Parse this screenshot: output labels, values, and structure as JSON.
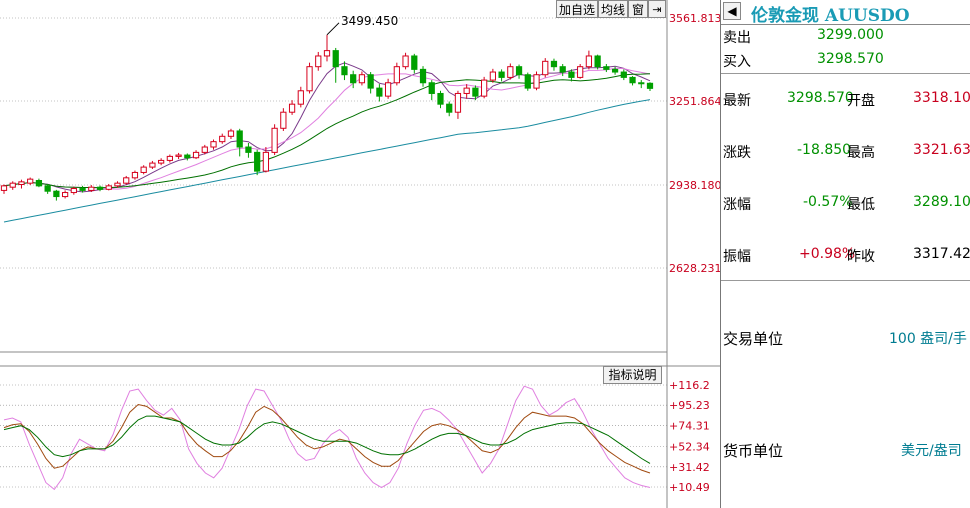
{
  "toolbar": {
    "add_watchlist": "加自选",
    "ma_lines": "均线",
    "window": "窗",
    "collapse_icon": "arrow-right-bar-icon"
  },
  "indicator_button": "指标说明",
  "panel": {
    "title": "伦敦金现 AUUSDO",
    "sell_label": "卖出",
    "sell_value": "3299.000",
    "buy_label": "买入",
    "buy_value": "3298.570",
    "latest_label": "最新",
    "latest_value": "3298.570",
    "open_label": "开盘",
    "open_value": "3318.100",
    "change_label": "涨跌",
    "change_value": "-18.850",
    "high_label": "最高",
    "high_value": "3321.630",
    "pct_label": "涨幅",
    "pct_value": "-0.57%",
    "low_label": "最低",
    "low_value": "3289.100",
    "amp_label": "振幅",
    "amp_value": "+0.98%",
    "prev_label": "昨收",
    "prev_value": "3317.420",
    "unit_label": "交易单位",
    "unit_value": "100 盎司/手",
    "currency_label": "货币单位",
    "currency_value": "美元/盎司"
  },
  "colors": {
    "up": "#d6001c",
    "down": "#00a000",
    "ma1": "#7a3a8a",
    "ma2": "#e080e0",
    "ma3": "#007000",
    "ma4": "#1a8ca0",
    "axis_red": "#c8001e"
  },
  "chart_data": [
    {
      "type": "candlestick",
      "y_ticks": [
        "3561.813",
        "3251.864",
        "2938.180",
        "2628.231"
      ],
      "ylim": [
        2628.231,
        3561.813
      ],
      "high_annotation": "3499.450",
      "grid": "dashed",
      "candles": [
        [
          2918,
          2935,
          2905,
          2940
        ],
        [
          2930,
          2945,
          2920,
          2952
        ],
        [
          2940,
          2950,
          2925,
          2958
        ],
        [
          2945,
          2960,
          2938,
          2966
        ],
        [
          2955,
          2935,
          2930,
          2962
        ],
        [
          2935,
          2915,
          2905,
          2942
        ],
        [
          2915,
          2895,
          2880,
          2920
        ],
        [
          2895,
          2910,
          2888,
          2918
        ],
        [
          2910,
          2925,
          2902,
          2932
        ],
        [
          2925,
          2918,
          2910,
          2935
        ],
        [
          2918,
          2930,
          2912,
          2938
        ],
        [
          2930,
          2922,
          2915,
          2936
        ],
        [
          2922,
          2935,
          2918,
          2942
        ],
        [
          2935,
          2945,
          2928,
          2952
        ],
        [
          2945,
          2965,
          2940,
          2972
        ],
        [
          2965,
          2985,
          2958,
          2992
        ],
        [
          2985,
          3005,
          2978,
          3012
        ],
        [
          3005,
          3020,
          2998,
          3028
        ],
        [
          3020,
          3030,
          3012,
          3038
        ],
        [
          3030,
          3045,
          3022,
          3052
        ],
        [
          3045,
          3050,
          3035,
          3058
        ],
        [
          3050,
          3040,
          3030,
          3056
        ],
        [
          3040,
          3060,
          3035,
          3068
        ],
        [
          3060,
          3080,
          3052,
          3088
        ],
        [
          3080,
          3100,
          3070,
          3108
        ],
        [
          3100,
          3120,
          3092,
          3130
        ],
        [
          3120,
          3140,
          3110,
          3148
        ],
        [
          3140,
          3080,
          3045,
          3148
        ],
        [
          3080,
          3060,
          3040,
          3095
        ],
        [
          3060,
          2990,
          2975,
          3070
        ],
        [
          2990,
          3060,
          2985,
          3080
        ],
        [
          3060,
          3150,
          3050,
          3165
        ],
        [
          3150,
          3210,
          3140,
          3225
        ],
        [
          3210,
          3240,
          3200,
          3255
        ],
        [
          3240,
          3290,
          3228,
          3305
        ],
        [
          3290,
          3380,
          3280,
          3395
        ],
        [
          3380,
          3420,
          3365,
          3435
        ],
        [
          3420,
          3440,
          3400,
          3499
        ],
        [
          3440,
          3380,
          3320,
          3450
        ],
        [
          3380,
          3350,
          3330,
          3400
        ],
        [
          3350,
          3320,
          3300,
          3365
        ],
        [
          3320,
          3350,
          3310,
          3362
        ],
        [
          3350,
          3300,
          3280,
          3360
        ],
        [
          3300,
          3270,
          3250,
          3315
        ],
        [
          3270,
          3320,
          3260,
          3335
        ],
        [
          3320,
          3380,
          3310,
          3395
        ],
        [
          3380,
          3420,
          3370,
          3432
        ],
        [
          3420,
          3370,
          3355,
          3428
        ],
        [
          3370,
          3320,
          3305,
          3382
        ],
        [
          3320,
          3280,
          3255,
          3330
        ],
        [
          3280,
          3240,
          3225,
          3290
        ],
        [
          3240,
          3210,
          3195,
          3250
        ],
        [
          3210,
          3280,
          3185,
          3290
        ],
        [
          3280,
          3300,
          3260,
          3315
        ],
        [
          3300,
          3270,
          3255,
          3310
        ],
        [
          3270,
          3330,
          3262,
          3342
        ],
        [
          3330,
          3360,
          3320,
          3372
        ],
        [
          3360,
          3340,
          3325,
          3370
        ],
        [
          3340,
          3380,
          3332,
          3392
        ],
        [
          3380,
          3350,
          3335,
          3388
        ],
        [
          3350,
          3300,
          3290,
          3358
        ],
        [
          3300,
          3350,
          3292,
          3362
        ],
        [
          3350,
          3400,
          3340,
          3412
        ],
        [
          3400,
          3380,
          3365,
          3410
        ],
        [
          3380,
          3360,
          3345,
          3390
        ],
        [
          3360,
          3340,
          3325,
          3370
        ],
        [
          3340,
          3380,
          3335,
          3390
        ],
        [
          3380,
          3420,
          3370,
          3440
        ],
        [
          3420,
          3380,
          3370,
          3425
        ],
        [
          3380,
          3370,
          3360,
          3390
        ],
        [
          3370,
          3360,
          3350,
          3380
        ],
        [
          3360,
          3340,
          3330,
          3370
        ],
        [
          3340,
          3320,
          3310,
          3345
        ],
        [
          3320,
          3318,
          3300,
          3330
        ],
        [
          3318,
          3299,
          3289,
          3322
        ]
      ]
    },
    {
      "type": "line",
      "y_ticks": [
        "+116.2",
        "+95.23",
        "+74.31",
        "+52.34",
        "+31.42",
        "+10.49"
      ],
      "ylim": [
        0,
        126
      ],
      "series": [
        {
          "values": [
            80,
            82,
            78,
            55,
            35,
            15,
            8,
            20,
            45,
            60,
            55,
            50,
            48,
            65,
            90,
            110,
            112,
            100,
            90,
            85,
            92,
            80,
            50,
            35,
            25,
            20,
            30,
            50,
            70,
            95,
            112,
            110,
            95,
            80,
            60,
            45,
            38,
            40,
            55,
            65,
            70,
            62,
            40,
            25,
            15,
            10,
            15,
            30,
            55,
            75,
            90,
            92,
            88,
            80,
            70,
            55,
            40,
            25,
            35,
            50,
            75,
            100,
            115,
            112,
            95,
            85,
            90,
            98,
            102,
            88,
            70,
            55,
            40,
            30,
            20,
            15,
            12,
            10
          ]
        },
        {
          "values": [
            72,
            75,
            76,
            68,
            55,
            40,
            30,
            32,
            40,
            48,
            52,
            50,
            50,
            58,
            72,
            88,
            96,
            94,
            88,
            82,
            82,
            78,
            65,
            55,
            48,
            42,
            42,
            48,
            58,
            72,
            88,
            94,
            90,
            82,
            72,
            62,
            54,
            50,
            52,
            56,
            60,
            58,
            50,
            42,
            36,
            32,
            32,
            38,
            48,
            58,
            68,
            74,
            76,
            74,
            70,
            64,
            56,
            48,
            46,
            50,
            60,
            72,
            82,
            88,
            86,
            84,
            84,
            84,
            82,
            76,
            66,
            56,
            48,
            42,
            36,
            32,
            28,
            25
          ]
        },
        {
          "values": [
            70,
            72,
            74,
            70,
            62,
            52,
            44,
            42,
            44,
            48,
            50,
            50,
            50,
            54,
            62,
            72,
            80,
            84,
            84,
            82,
            80,
            78,
            72,
            66,
            60,
            56,
            54,
            54,
            56,
            62,
            70,
            76,
            78,
            76,
            72,
            68,
            64,
            60,
            58,
            58,
            58,
            58,
            56,
            52,
            48,
            45,
            44,
            44,
            46,
            50,
            55,
            60,
            64,
            66,
            66,
            64,
            60,
            56,
            54,
            54,
            56,
            60,
            66,
            70,
            72,
            74,
            76,
            77,
            77,
            76,
            72,
            68,
            64,
            58,
            52,
            46,
            40,
            35
          ]
        }
      ]
    }
  ]
}
